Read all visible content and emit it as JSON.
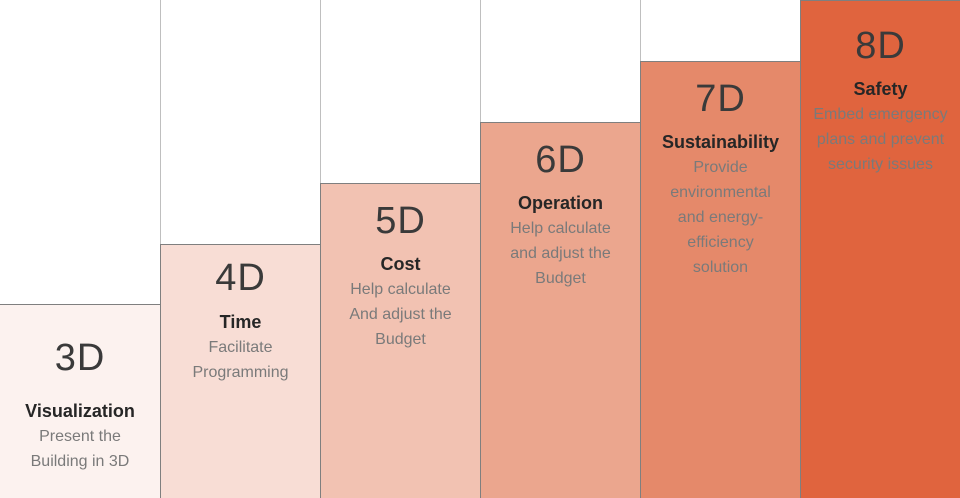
{
  "steps": [
    {
      "code": "3D",
      "name": "Visualization",
      "desc": "Present the Building in 3D",
      "color": "#fcf2ef"
    },
    {
      "code": "4D",
      "name": "Time",
      "desc": "Facilitate Programming",
      "color": "#f8ddd5"
    },
    {
      "code": "5D",
      "name": "Cost",
      "desc": "Help calculate And adjust the Budget",
      "color": "#f2c2b2"
    },
    {
      "code": "6D",
      "name": "Operation",
      "desc": "Help calculate and adjust the Budget",
      "color": "#eba68e"
    },
    {
      "code": "7D",
      "name": "Sustainability",
      "desc": "Provide environmental and energy-efficiency solution",
      "color": "#e5896a"
    },
    {
      "code": "8D",
      "name": "Safety",
      "desc": "Embed emergency plans and prevent security issues",
      "color": "#e0643e"
    }
  ]
}
